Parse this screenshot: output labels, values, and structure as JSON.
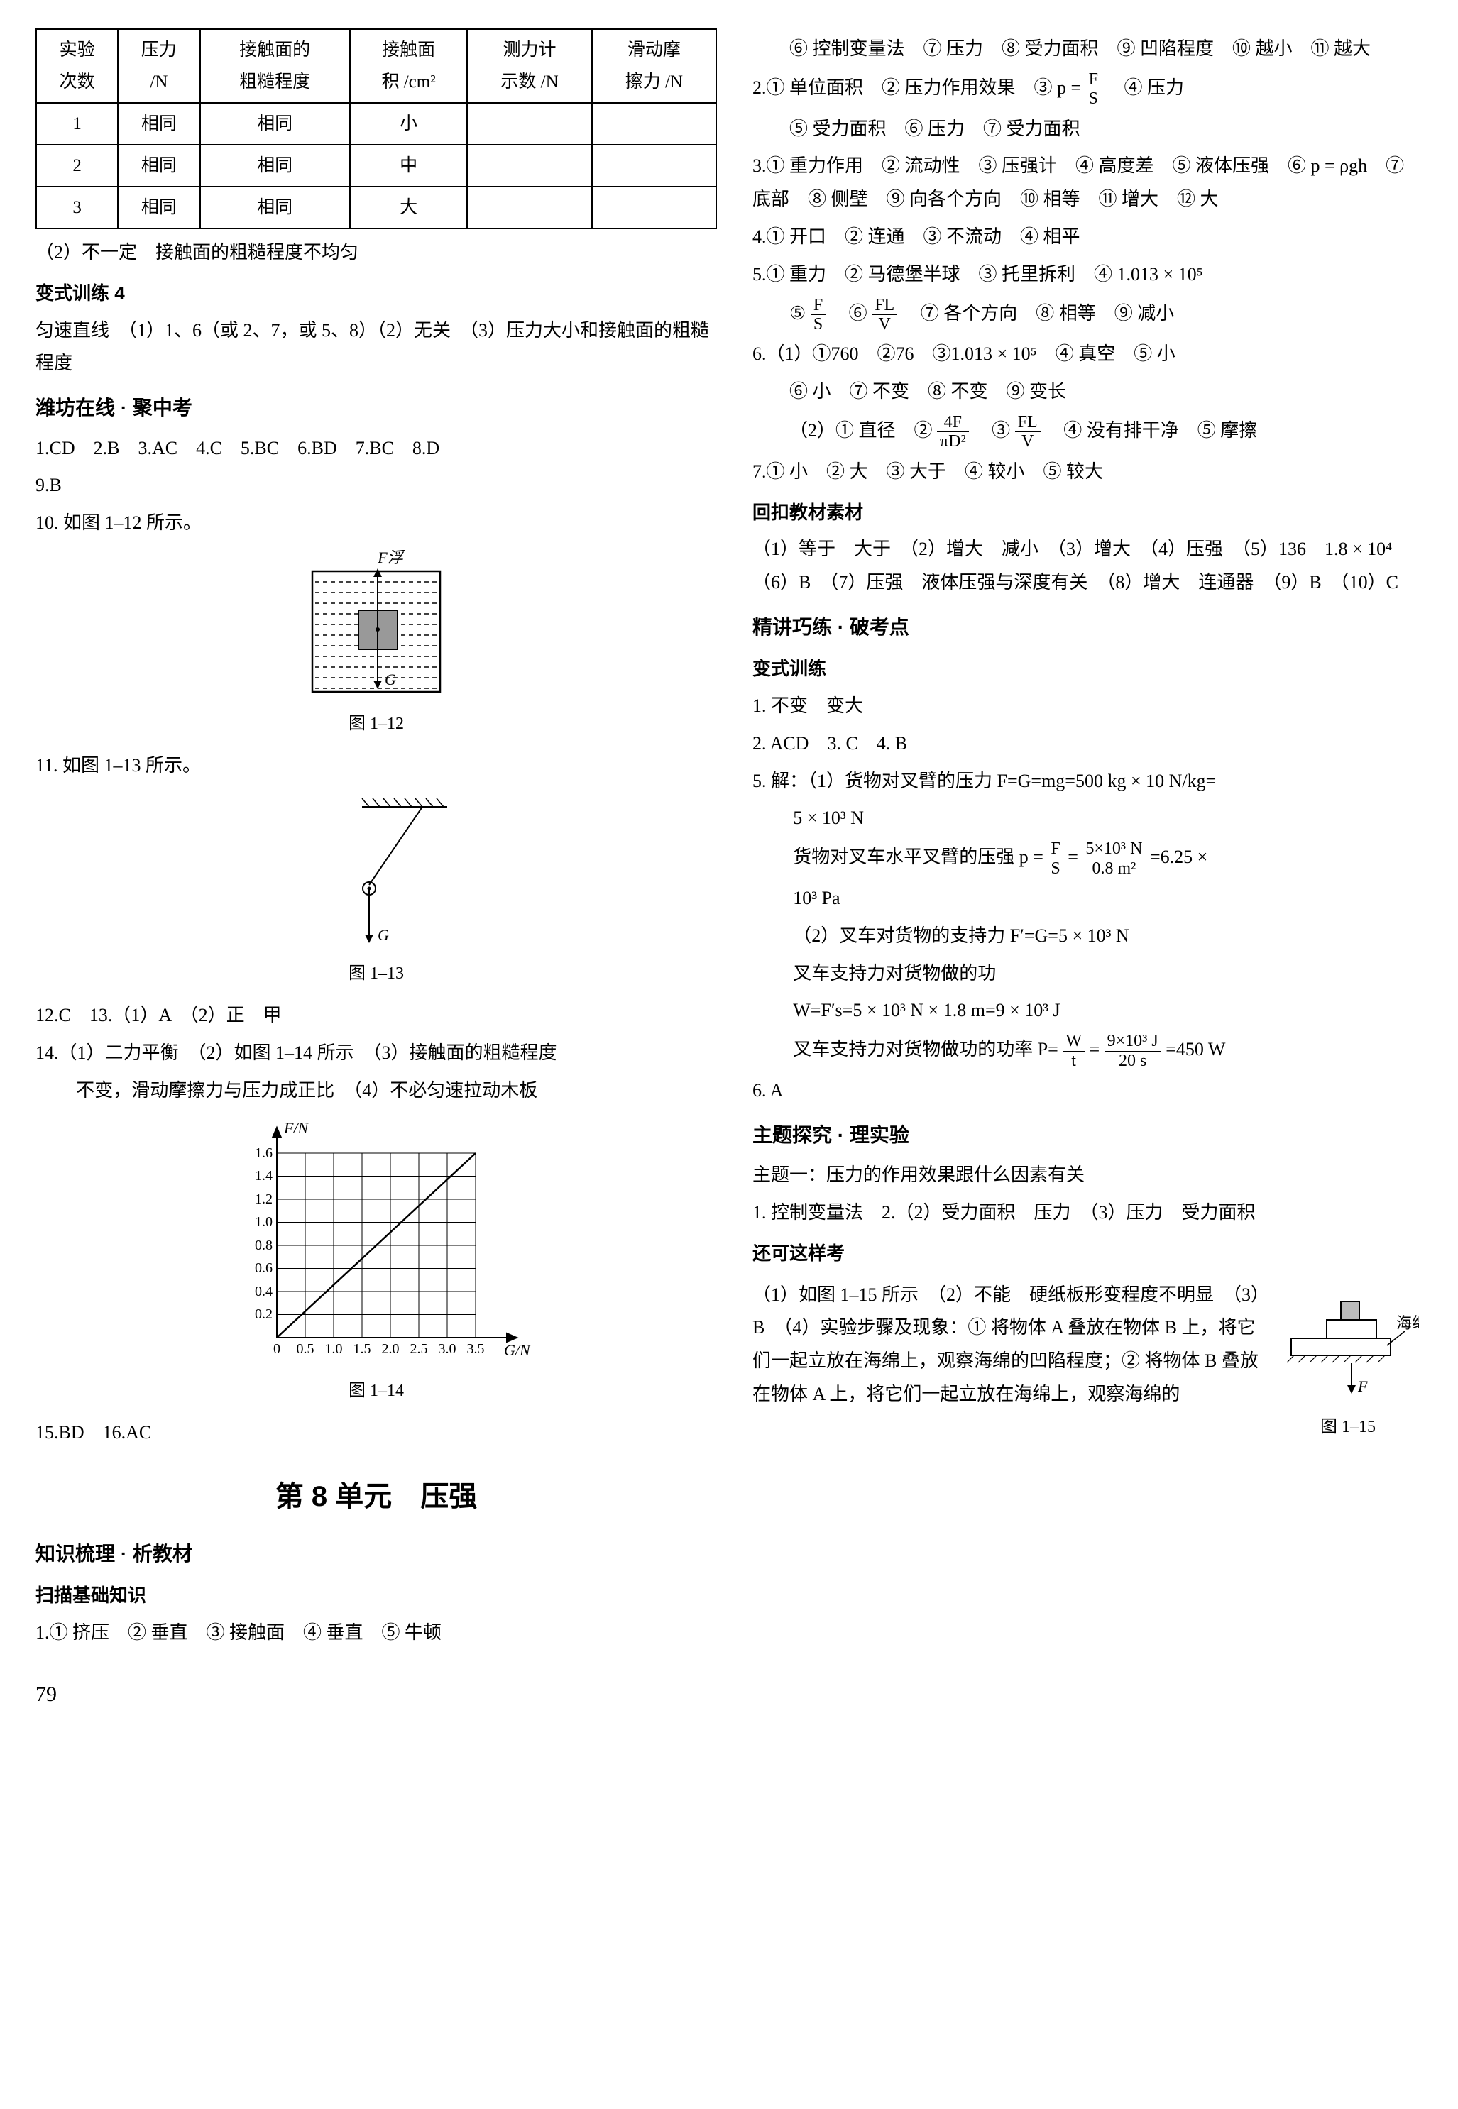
{
  "table": {
    "headers": [
      "实验\n次数",
      "压力\n/N",
      "接触面的\n粗糙程度",
      "接触面\n积 /cm²",
      "测力计\n示数 /N",
      "滑动摩\n擦力 /N"
    ],
    "rows": [
      [
        "1",
        "相同",
        "相同",
        "小",
        "",
        ""
      ],
      [
        "2",
        "相同",
        "相同",
        "中",
        "",
        ""
      ],
      [
        "3",
        "相同",
        "相同",
        "大",
        "",
        ""
      ]
    ]
  },
  "left": {
    "p2": "（2）不一定　接触面的粗糙程度不均匀",
    "h_bx4": "变式训练 4",
    "p_bx4": "匀速直线　（1）1、6（或 2、7，或 5、8）（2）无关　（3）压力大小和接触面的粗糙程度",
    "h_wf": "潍坊在线 · 聚中考",
    "ans1": "1.CD　2.B　3.AC　4.C　5.BC　6.BD　7.BC　8.D",
    "ans2": "9.B",
    "p10": "10. 如图 1–12 所示。",
    "fig12_cap": "图 1–12",
    "fig12_labels": {
      "F": "F浮",
      "G": "G"
    },
    "p11": "11. 如图 1–13 所示。",
    "fig13_cap": "图 1–13",
    "fig13_label": "G",
    "p12": "12.C　13.（1）A　（2）正　甲",
    "p14a": "14.（1）二力平衡　（2）如图 1–14 所示　（3）接触面的粗糙程度",
    "p14b": "不变，滑动摩擦力与压力成正比　（4）不必匀速拉动木板",
    "fig14": {
      "ylabel": "F/N",
      "xlabel": "G/N",
      "yticks": [
        "0.2",
        "0.4",
        "0.6",
        "0.8",
        "1.0",
        "1.2",
        "1.4",
        "1.6"
      ],
      "xticks": [
        "0",
        "0.5",
        "1.0",
        "1.5",
        "2.0",
        "2.5",
        "3.0",
        "3.5"
      ],
      "cap": "图 1–14"
    },
    "p15": "15.BD　16.AC",
    "unit8": "第 8 单元　压强",
    "h_zsl": "知识梳理 · 析教材",
    "h_smjczs": "扫描基础知识",
    "p_sm1": "1.① 挤压　② 垂直　③ 接触面　④ 垂直　⑤ 牛顿"
  },
  "right": {
    "p_cont": "⑥ 控制变量法　⑦ 压力　⑧ 受力面积　⑨ 凹陷程度　⑩ 越小　⑪ 越大",
    "p2a": "2.① 单位面积　② 压力作用效果　③ p = ",
    "p2_frac": {
      "num": "F",
      "den": "S"
    },
    "p2b": "　④ 压力",
    "p2c": "⑤ 受力面积　⑥ 压力　⑦ 受力面积",
    "p3a": "3.① 重力作用　② 流动性　③ 压强计　④ 高度差　⑤ 液体压强　⑥ p = ρgh　⑦ 底部　⑧ 侧壁　⑨ 向各个方向　⑩ 相等　⑪ 增大　⑫ 大",
    "p4": "4.① 开口　② 连通　③ 不流动　④ 相平",
    "p5a": "5.① 重力　② 马德堡半球　③ 托里拆利　④ 1.013 × 10⁵",
    "p5b_pre": "⑤ ",
    "p5b_frac1": {
      "num": "F",
      "den": "S"
    },
    "p5b_mid": "　⑥ ",
    "p5b_frac2": {
      "num": "FL",
      "den": "V"
    },
    "p5b_post": "　⑦ 各个方向　⑧ 相等　⑨ 减小",
    "p6_1": "6.（1）①760　②76　③1.013 × 10⁵　④ 真空　⑤ 小",
    "p6_1b": "⑥ 小　⑦ 不变　⑧ 不变　⑨ 变长",
    "p6_2_pre": "（2）① 直径　② ",
    "p6_2_frac1": {
      "num": "4F",
      "den": "πD²"
    },
    "p6_2_mid": "　③ ",
    "p6_2_frac2": {
      "num": "FL",
      "den": "V"
    },
    "p6_2_post": "　④ 没有排干净　⑤ 摩擦",
    "p7": "7.① 小　② 大　③ 大于　④ 较小　⑤ 较大",
    "h_hkjcsc": "回扣教材素材",
    "p_hk": "（1）等于　大于　（2）增大　减小　（3）增大　（4）压强　（5）136　1.8 × 10⁴　（6）B　（7）压强　液体压强与深度有关　（8）增大　连通器　（9）B　（10）C",
    "h_jjql": "精讲巧练 · 破考点",
    "h_bxxl": "变式训练",
    "p_bx1": "1. 不变　变大",
    "p_bx2": "2. ACD　3. C　4. B",
    "p5_sol1": "5. 解：（1）货物对叉臂的压力 F=G=mg=500 kg × 10 N/kg=",
    "p5_sol1b": "5 × 10³ N",
    "p5_sol2_pre": "货物对叉车水平叉臂的压强 p = ",
    "p5_sol2_frac1": {
      "num": "F",
      "den": "S"
    },
    "p5_sol2_mid": " = ",
    "p5_sol2_frac2": {
      "num": "5×10³ N",
      "den": "0.8 m²"
    },
    "p5_sol2_post": " =6.25 ×",
    "p5_sol2c": "10³ Pa",
    "p5_sol3": "（2）叉车对货物的支持力 F′=G=5 × 10³ N",
    "p5_sol4": "叉车支持力对货物做的功",
    "p5_sol5": "W=F′s=5 × 10³ N × 1.8 m=9 × 10³ J",
    "p5_sol6_pre": "叉车支持力对货物做功的功率 P= ",
    "p5_sol6_frac1": {
      "num": "W",
      "den": "t"
    },
    "p5_sol6_mid": " = ",
    "p5_sol6_frac2": {
      "num": "9×10³ J",
      "den": "20 s"
    },
    "p5_sol6_post": " =450 W",
    "p6": "6. A",
    "h_ztyj": "主题探究 · 理实验",
    "p_zt1": "主题一：压力的作用效果跟什么因素有关",
    "p_zt2": "1. 控制变量法　2.（2）受力面积　压力　（3）压力　受力面积",
    "h_hkzyk": "还可这样考",
    "p_hkzy": "（1）如图 1–15 所示　（2）不能　硬纸板形变程度不明显　（3）B　（4）实验步骤及现象：① 将物体 A 叠放在物体 B 上，将它们一起立放在海绵上，观察海绵的凹陷程度；② 将物体 B 叠放在物体 A 上，将它们一起立放在海绵上，观察海绵的",
    "fig15_labels": {
      "sponge": "海绵",
      "F": "F",
      "cap": "图 1–15"
    }
  },
  "page_num": "79"
}
